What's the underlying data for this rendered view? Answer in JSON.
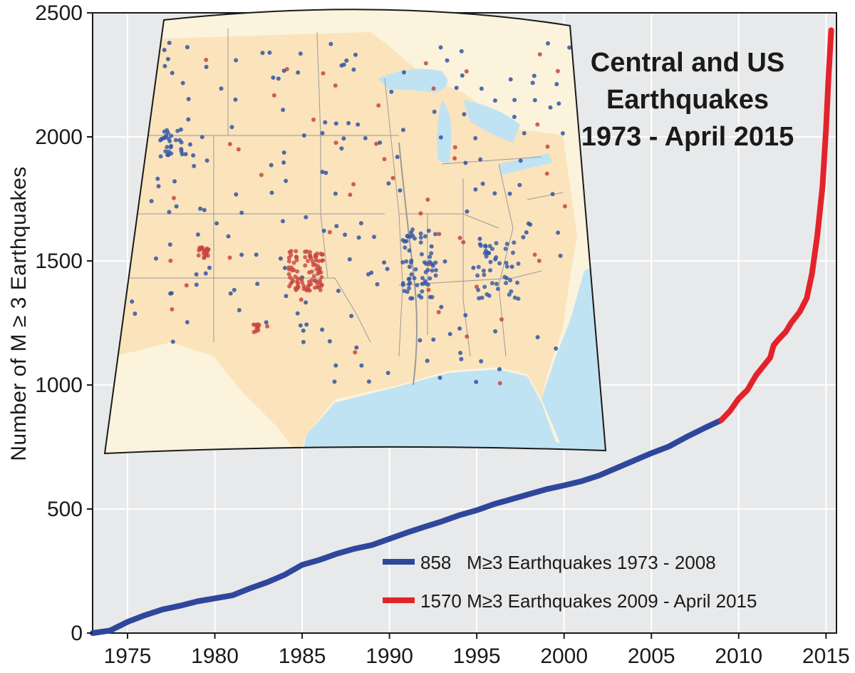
{
  "chart_data": {
    "type": "line",
    "title": [
      "Central and US",
      "Earthquakes",
      "1973 - April 2015"
    ],
    "ylabel": "Number of M ≥ 3 Earthquakes",
    "xlabel": "",
    "xlim": [
      1973,
      2015.6
    ],
    "ylim": [
      0,
      2500
    ],
    "x_ticks": [
      1975,
      1980,
      1985,
      1990,
      1995,
      2000,
      2005,
      2010,
      2015
    ],
    "y_ticks": [
      0,
      500,
      1000,
      1500,
      2000,
      2500
    ],
    "grid": true,
    "legend_position": "bottom-right",
    "series": [
      {
        "name": "858   M≥3 Earthquakes 1973 - 2008",
        "color": "#2e479c",
        "x": [
          1973,
          1974,
          1975,
          1976,
          1977,
          1978,
          1979,
          1980,
          1981,
          1982,
          1983,
          1984,
          1985,
          1986,
          1987,
          1988,
          1989,
          1990,
          1991,
          1992,
          1993,
          1994,
          1995,
          1996,
          1997,
          1998,
          1999,
          2000,
          2001,
          2002,
          2003,
          2004,
          2005,
          2006,
          2007,
          2008,
          2009
        ],
        "values": [
          0,
          10,
          45,
          72,
          95,
          110,
          128,
          140,
          152,
          180,
          205,
          235,
          275,
          295,
          320,
          340,
          355,
          380,
          405,
          428,
          450,
          475,
          495,
          520,
          540,
          560,
          580,
          595,
          612,
          635,
          665,
          695,
          725,
          752,
          790,
          825,
          858
        ]
      },
      {
        "name": "1570 M≥3 Earthquakes 2009 - April 2015",
        "color": "#e3232b",
        "x": [
          2009,
          2009.5,
          2010,
          2010.5,
          2011,
          2011.4,
          2011.8,
          2012,
          2012.3,
          2012.7,
          2013,
          2013.5,
          2013.9,
          2014.2,
          2014.5,
          2014.8,
          2015,
          2015.15,
          2015.3
        ],
        "values": [
          858,
          895,
          945,
          980,
          1040,
          1075,
          1110,
          1160,
          1185,
          1215,
          1250,
          1295,
          1350,
          1450,
          1600,
          1800,
          2030,
          2250,
          2430
        ]
      }
    ]
  },
  "inset_map": {
    "description": "",
    "land_color": "#fbe3bc",
    "water_color": "#bfe3f3",
    "outside_color": "#fbf3dc",
    "blue_dot_color": "#2f55a5",
    "red_dot_color": "#c8453f"
  }
}
